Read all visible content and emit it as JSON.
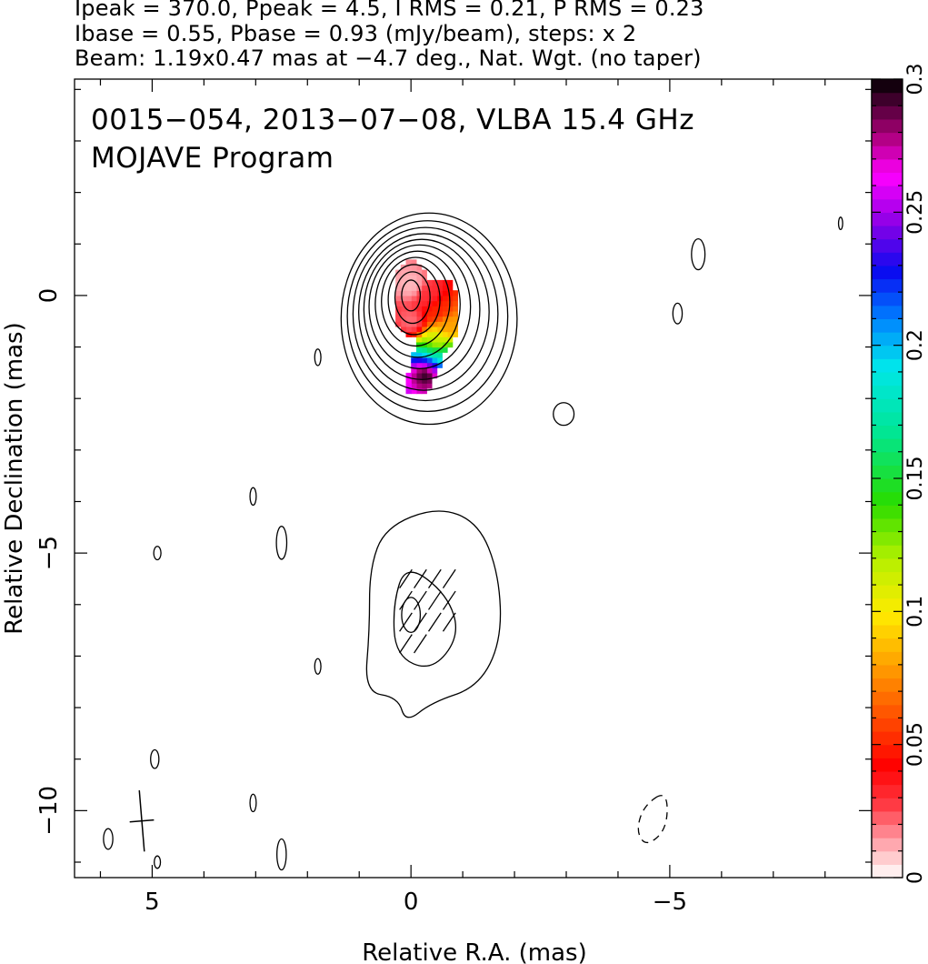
{
  "header": {
    "line1": "Ipeak = 370.0, Ppeak = 4.5, I RMS = 0.21, P RMS = 0.23",
    "line2": "Ibase = 0.55, Pbase = 0.93 (mJy/beam), steps: x 2",
    "line3": "Beam: 1.19x0.47 mas at −4.7 deg., Nat. Wgt. (no taper)"
  },
  "chart_data": {
    "type": "heatmap",
    "title": "0015−054, 2013−07−08, VLBA 15.4 GHz",
    "subtitle": "MOJAVE Program",
    "xlabel": "Relative R.A. (mas)",
    "ylabel": "Relative Declination (mas)",
    "xlim": [
      6.5,
      -8.9
    ],
    "ylim": [
      -11.3,
      4.2
    ],
    "x_ticks": [
      5,
      0,
      -5
    ],
    "x_tick_labels": [
      "5",
      "0",
      "−5"
    ],
    "y_ticks": [
      0,
      -5,
      -10
    ],
    "y_tick_labels": [
      "0",
      "−5",
      "−10"
    ],
    "colorbar": {
      "min": 0,
      "max": 0.3,
      "ticks": [
        0,
        0.05,
        0.1,
        0.15,
        0.2,
        0.25,
        0.3
      ],
      "tick_labels": [
        "0",
        "0.05",
        "0.1",
        "0.15",
        "0.2",
        "0.25",
        "0.3"
      ]
    },
    "core": {
      "x": 0.0,
      "y": 0.0,
      "contour_levels": 11
    },
    "jet_component": {
      "x": 0.0,
      "y": -6.2,
      "contour_levels": 3
    },
    "polarization_fraction_map": [
      {
        "x": 0.0,
        "y": 0.2,
        "value": 0.01
      },
      {
        "x": 0.0,
        "y": -0.5,
        "value": 0.02
      },
      {
        "x": -0.3,
        "y": 0.0,
        "value": 0.03
      },
      {
        "x": -0.5,
        "y": -0.3,
        "value": 0.05
      },
      {
        "x": -0.7,
        "y": -0.6,
        "value": 0.08
      },
      {
        "x": -0.5,
        "y": -0.9,
        "value": 0.11
      },
      {
        "x": -0.5,
        "y": -1.1,
        "value": 0.15
      },
      {
        "x": -0.5,
        "y": -1.2,
        "value": 0.19
      },
      {
        "x": -0.4,
        "y": -1.35,
        "value": 0.24
      },
      {
        "x": -0.3,
        "y": -1.5,
        "value": 0.3
      }
    ],
    "beam": {
      "major_mas": 1.19,
      "minor_mas": 0.47,
      "pa_deg": -4.7
    },
    "grid": false
  }
}
